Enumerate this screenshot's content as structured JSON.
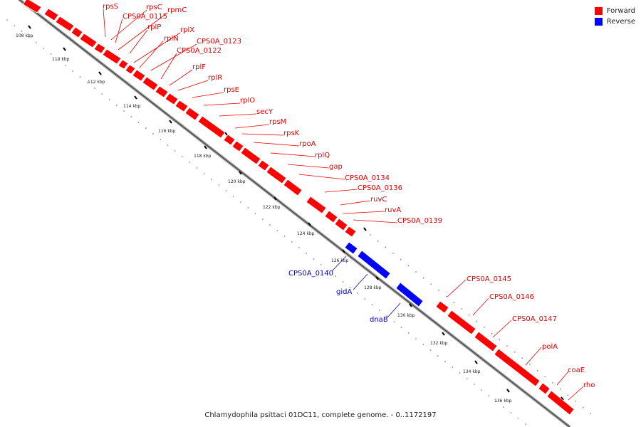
{
  "caption": "Chlamydophila psittaci 01DC11, complete genome. - 0..1172197",
  "legend": {
    "forward": {
      "label": "Forward",
      "color": "#ff0000"
    },
    "reverse": {
      "label": "Reverse",
      "color": "#0000ff"
    }
  },
  "ticks": [
    "108 kbp",
    "110 kbp",
    "112 kbp",
    "114 kbp",
    "116 kbp",
    "118 kbp",
    "120 kbp",
    "122 kbp",
    "124 kbp",
    "126 kbp",
    "128 kbp",
    "130 kbp",
    "132 kbp",
    "134 kbp",
    "136 kbp"
  ],
  "genes_forward": [
    "rpsS",
    "rpsC",
    "CPS0A_0115",
    "rpmC",
    "rplP",
    "rplX",
    "rplN",
    "CPS0A_0123",
    "CPS0A_0122",
    "rplF",
    "rplR",
    "rpsE",
    "rplO",
    "secY",
    "rpsM",
    "rpsK",
    "rpoA",
    "rplQ",
    "gap",
    "CPS0A_0134",
    "CPS0A_0136",
    "ruvC",
    "ruvA",
    "CPS0A_0139",
    "CPS0A_0145",
    "CPS0A_0146",
    "CPS0A_0147",
    "polA",
    "coaE",
    "rho"
  ],
  "genes_reverse": [
    "CPS0A_0140",
    "gidA",
    "dnaB"
  ]
}
